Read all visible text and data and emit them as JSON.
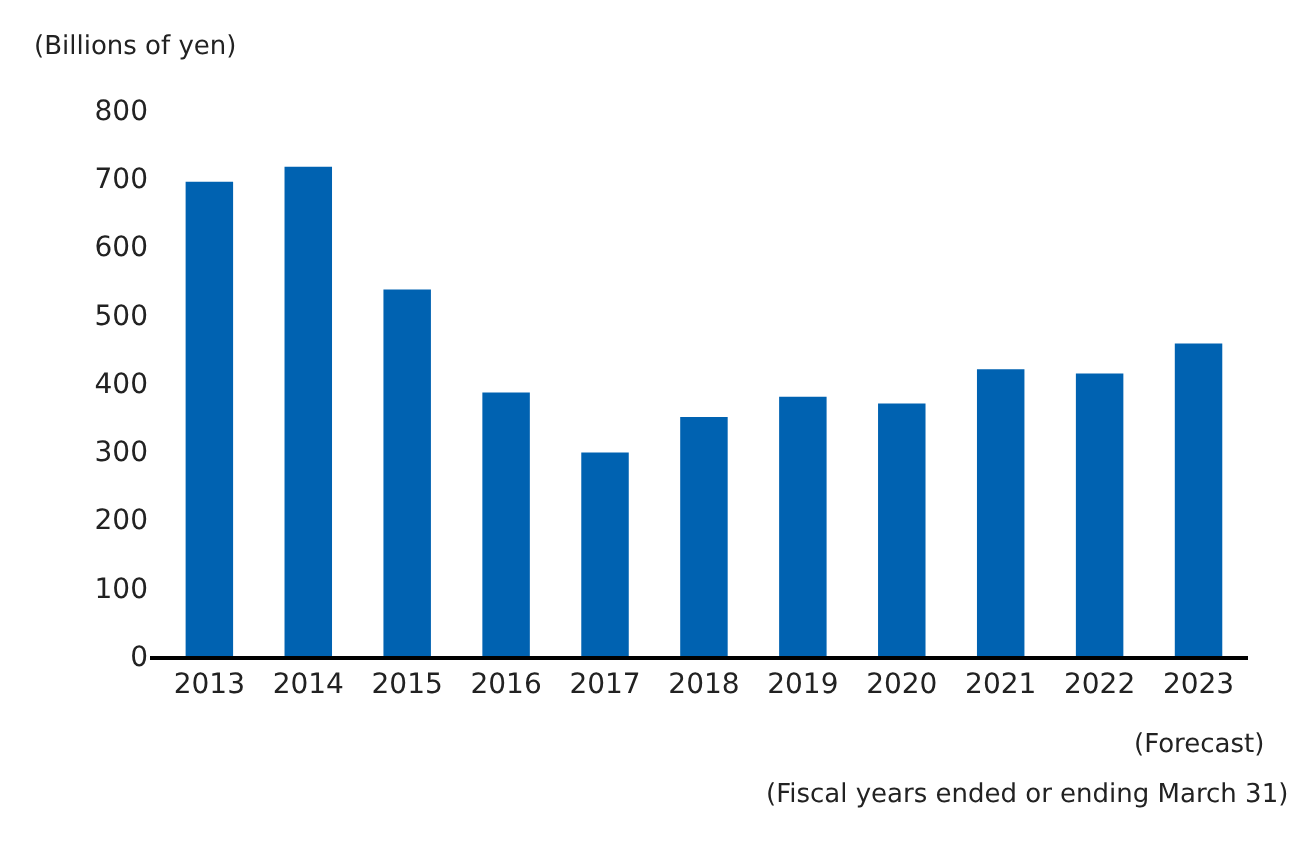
{
  "chart_data": {
    "type": "bar",
    "ylabel": "(Billions of yen)",
    "categories": [
      "2013",
      "2014",
      "2015",
      "2016",
      "2017",
      "2018",
      "2019",
      "2020",
      "2021",
      "2022",
      "2023"
    ],
    "values": [
      695,
      717,
      537,
      386,
      298,
      350,
      380,
      370,
      420,
      414,
      458
    ],
    "color": "#0062b1",
    "ylim": [
      0,
      800
    ],
    "yticks": [
      0,
      100,
      200,
      300,
      400,
      500,
      600,
      700,
      800
    ],
    "annotations": [
      "(Forecast)",
      "(Fiscal years ended or ending March 31)"
    ]
  }
}
